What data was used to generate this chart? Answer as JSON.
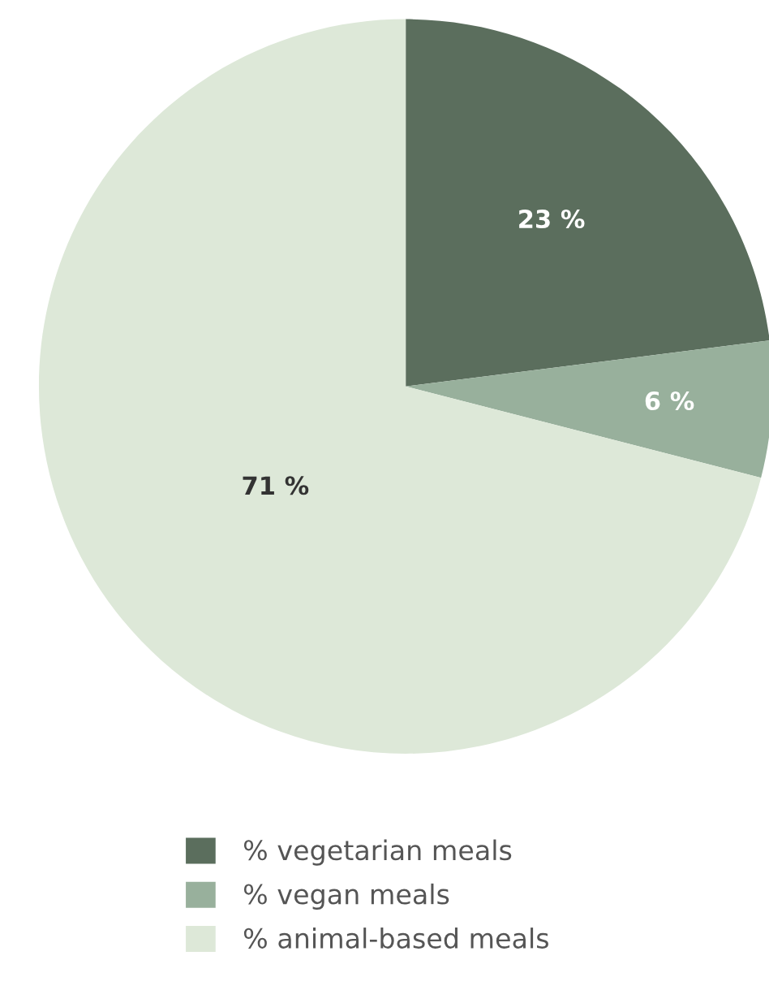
{
  "chart_data": {
    "type": "pie",
    "categories": [
      "% vegetarian meals",
      "% vegan meals",
      "% animal-based meals"
    ],
    "values": [
      23,
      6,
      71
    ],
    "colors": [
      "#5b6e5d",
      "#98b09c",
      "#dde8d8"
    ],
    "value_labels": [
      "23 %",
      "6 %",
      "71 %"
    ],
    "legend": "bottom"
  }
}
